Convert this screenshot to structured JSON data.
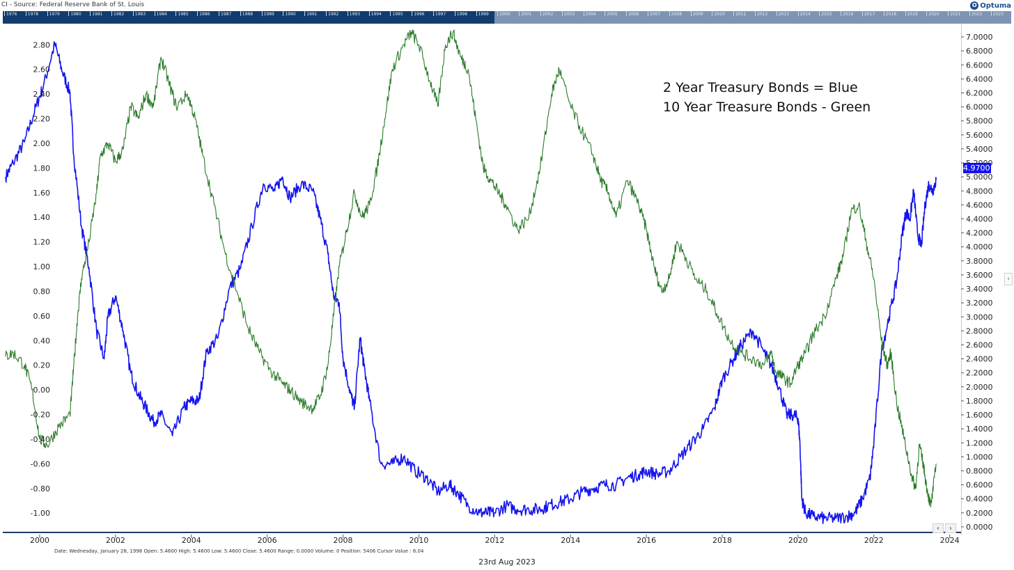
{
  "window": {
    "title": "CI - Source: Federal Reserve Bank of St. Louis",
    "logo_text": "Optuma",
    "logo_mark": "O"
  },
  "navigator": {
    "years": [
      "1976",
      "1978",
      "1979",
      "1980",
      "1981",
      "1982",
      "1983",
      "1984",
      "1985",
      "1986",
      "1987",
      "1988",
      "1989",
      "1990",
      "1991",
      "1992",
      "1993",
      "1994",
      "1995",
      "1996",
      "1997",
      "1998",
      "1999",
      "2000",
      "2001",
      "2002",
      "2003",
      "2004",
      "2005",
      "2006",
      "2007",
      "2008",
      "2009",
      "2010",
      "2011",
      "2012",
      "2013",
      "2014",
      "2015",
      "2016",
      "2017",
      "2018",
      "2019",
      "2020",
      "2021",
      "2022",
      "2023"
    ],
    "colors": {
      "strip": "#7d95b3",
      "selected": "#123c6e"
    }
  },
  "chart_data": {
    "type": "line",
    "annotations": [
      "2 Year Treasury Bonds = Blue",
      "10 Year Treasure Bonds - Green"
    ],
    "x_axis": {
      "ticks": [
        "2000",
        "2002",
        "2004",
        "2006",
        "2008",
        "2010",
        "2012",
        "2014",
        "2016",
        "2018",
        "2020",
        "2022",
        "2024"
      ],
      "range": [
        1999.1,
        2024.3
      ]
    },
    "y_left": {
      "ticks": [
        "2.80",
        "2.60",
        "2.40",
        "2.20",
        "2.00",
        "1.80",
        "1.60",
        "1.40",
        "1.20",
        "1.00",
        "0.80",
        "0.60",
        "0.40",
        "0.20",
        "0.00",
        "-0.20",
        "-0.40",
        "-0.60",
        "-0.80",
        "-1.00"
      ],
      "range": [
        -1.14,
        2.92
      ]
    },
    "y_right": {
      "ticks": [
        "7.0000",
        "6.8000",
        "6.6000",
        "6.4000",
        "6.2000",
        "6.0000",
        "5.8000",
        "5.6000",
        "5.4000",
        "5.2000",
        "5.0000",
        "4.8000",
        "4.6000",
        "4.4000",
        "4.2000",
        "4.0000",
        "3.8000",
        "3.6000",
        "3.4000",
        "3.2000",
        "3.0000",
        "2.8000",
        "2.6000",
        "2.4000",
        "2.2000",
        "2.0000",
        "1.8000",
        "1.6000",
        "1.4000",
        "1.2000",
        "1.0000",
        "0.8000",
        "0.6000",
        "0.4000",
        "0.2000",
        "0.0000"
      ],
      "range": [
        -0.05,
        7.1
      ]
    },
    "last_value_label": "4.9700",
    "series": [
      {
        "axis": "right",
        "color": "#1414ee",
        "x": [
          1999.1,
          1999.3,
          1999.6,
          1999.9,
          2000.1,
          2000.4,
          2000.6,
          2000.8,
          2000.9,
          2001.1,
          2001.3,
          2001.5,
          2001.7,
          2001.8,
          2002.0,
          2002.2,
          2002.4,
          2002.6,
          2002.8,
          2003.0,
          2003.2,
          2003.5,
          2003.8,
          2004.0,
          2004.2,
          2004.4,
          2004.7,
          2005.0,
          2005.3,
          2005.6,
          2005.9,
          2006.2,
          2006.4,
          2006.6,
          2006.9,
          2007.2,
          2007.4,
          2007.6,
          2007.75,
          2007.9,
          2008.0,
          2008.2,
          2008.3,
          2008.45,
          2008.55,
          2008.7,
          2009.0,
          2009.3,
          2009.6,
          2009.9,
          2010.2,
          2010.5,
          2010.8,
          2011.0,
          2011.3,
          2011.6,
          2011.8,
          2012.0,
          2012.3,
          2012.6,
          2012.9,
          2013.2,
          2013.4,
          2013.7,
          2014.0,
          2014.3,
          2014.6,
          2014.9,
          2015.2,
          2015.5,
          2015.8,
          2016.0,
          2016.3,
          2016.6,
          2016.9,
          2017.2,
          2017.5,
          2017.8,
          2018.0,
          2018.3,
          2018.5,
          2018.8,
          2019.1,
          2019.3,
          2019.5,
          2019.7,
          2019.9,
          2020.0,
          2020.05,
          2020.1,
          2020.2,
          2020.4,
          2020.7,
          2021.0,
          2021.3,
          2021.5,
          2021.7,
          2021.9,
          2022.0,
          2022.2,
          2022.4,
          2022.6,
          2022.75,
          2022.85,
          2022.95,
          2023.05,
          2023.15,
          2023.25,
          2023.35,
          2023.45,
          2023.55,
          2023.65
        ],
        "y": [
          5.0,
          5.2,
          5.5,
          6.0,
          6.3,
          6.9,
          6.5,
          6.2,
          5.3,
          4.3,
          3.7,
          2.8,
          2.4,
          3.0,
          3.3,
          2.8,
          2.2,
          1.9,
          1.7,
          1.5,
          1.6,
          1.3,
          1.7,
          1.8,
          1.8,
          2.5,
          2.7,
          3.4,
          3.7,
          4.3,
          4.9,
          4.8,
          5.0,
          4.7,
          4.9,
          4.8,
          4.4,
          3.9,
          3.3,
          3.2,
          2.4,
          1.9,
          1.7,
          2.7,
          2.3,
          1.8,
          0.9,
          0.9,
          1.0,
          0.8,
          0.7,
          0.5,
          0.6,
          0.5,
          0.3,
          0.2,
          0.2,
          0.2,
          0.3,
          0.25,
          0.25,
          0.25,
          0.3,
          0.35,
          0.4,
          0.5,
          0.55,
          0.6,
          0.6,
          0.7,
          0.75,
          0.8,
          0.75,
          0.8,
          1.0,
          1.2,
          1.4,
          1.7,
          2.1,
          2.4,
          2.6,
          2.8,
          2.5,
          2.3,
          2.0,
          1.6,
          1.6,
          1.55,
          1.2,
          0.4,
          0.2,
          0.15,
          0.12,
          0.12,
          0.15,
          0.2,
          0.4,
          0.7,
          1.2,
          2.5,
          3.0,
          3.5,
          4.2,
          4.5,
          4.4,
          4.8,
          4.2,
          4.0,
          4.6,
          4.9,
          4.8,
          4.97
        ]
      },
      {
        "axis": "left",
        "color": "#2a7a2a",
        "x": [
          1999.1,
          1999.3,
          1999.6,
          1999.8,
          2000.0,
          2000.2,
          2000.5,
          2000.8,
          2000.9,
          2001.0,
          2001.1,
          2001.3,
          2001.5,
          2001.6,
          2001.8,
          2002.0,
          2002.2,
          2002.4,
          2002.6,
          2002.8,
          2003.0,
          2003.2,
          2003.4,
          2003.6,
          2003.9,
          2004.1,
          2004.3,
          2004.6,
          2004.9,
          2005.2,
          2005.5,
          2005.8,
          2006.1,
          2006.4,
          2006.6,
          2006.9,
          2007.2,
          2007.4,
          2007.6,
          2007.75,
          2007.9,
          2008.1,
          2008.3,
          2008.5,
          2008.7,
          2008.9,
          2009.1,
          2009.3,
          2009.6,
          2009.8,
          2010.0,
          2010.3,
          2010.5,
          2010.7,
          2010.9,
          2011.1,
          2011.3,
          2011.5,
          2011.7,
          2011.9,
          2012.1,
          2012.3,
          2012.6,
          2012.9,
          2013.2,
          2013.5,
          2013.7,
          2014.0,
          2014.3,
          2014.6,
          2014.8,
          2015.0,
          2015.2,
          2015.5,
          2015.8,
          2016.0,
          2016.2,
          2016.4,
          2016.6,
          2016.8,
          2017.0,
          2017.3,
          2017.6,
          2017.9,
          2018.2,
          2018.5,
          2018.8,
          2019.1,
          2019.3,
          2019.4,
          2019.6,
          2019.8,
          2020.0,
          2020.2,
          2020.4,
          2020.7,
          2021.0,
          2021.2,
          2021.4,
          2021.6,
          2021.8,
          2022.0,
          2022.2,
          2022.35,
          2022.45,
          2022.6,
          2022.8,
          2023.0,
          2023.1,
          2023.2,
          2023.3,
          2023.4,
          2023.5,
          2023.65
        ],
        "y": [
          0.27,
          0.3,
          0.2,
          0.0,
          -0.4,
          -0.45,
          -0.3,
          -0.2,
          0.2,
          0.6,
          0.9,
          1.2,
          1.6,
          1.9,
          2.0,
          1.85,
          1.95,
          2.3,
          2.2,
          2.4,
          2.3,
          2.7,
          2.5,
          2.3,
          2.4,
          2.2,
          1.9,
          1.5,
          1.1,
          0.8,
          0.5,
          0.3,
          0.15,
          0.05,
          0.0,
          -0.1,
          -0.15,
          -0.05,
          0.2,
          0.6,
          1.0,
          1.3,
          1.6,
          1.4,
          1.5,
          1.8,
          2.2,
          2.6,
          2.8,
          2.9,
          2.8,
          2.5,
          2.3,
          2.8,
          2.9,
          2.7,
          2.6,
          2.2,
          1.8,
          1.7,
          1.6,
          1.5,
          1.3,
          1.4,
          1.8,
          2.4,
          2.6,
          2.3,
          2.1,
          1.9,
          1.7,
          1.6,
          1.4,
          1.7,
          1.5,
          1.3,
          1.0,
          0.8,
          0.9,
          1.2,
          1.1,
          0.9,
          0.8,
          0.6,
          0.4,
          0.3,
          0.25,
          0.2,
          0.3,
          0.15,
          0.1,
          0.05,
          0.2,
          0.3,
          0.45,
          0.6,
          0.9,
          1.1,
          1.45,
          1.5,
          1.2,
          0.9,
          0.4,
          0.2,
          0.3,
          -0.1,
          -0.4,
          -0.7,
          -0.8,
          -0.45,
          -0.6,
          -0.8,
          -0.95,
          -0.6
        ]
      }
    ],
    "grid": false
  },
  "status": {
    "line": "Date: Wednesday, January 28, 1998 Open: 5.4600 High: 5.4600 Low: 5.4600 Close: 5.4600 Range: 0.0000 Volume: 0 Position: 5406 Cursor Value : 6.04"
  },
  "controls": {
    "scroll_left": "‹",
    "scroll_right": "›",
    "collapse": "‹"
  },
  "footer": {
    "date": "23rd Aug 2023"
  }
}
